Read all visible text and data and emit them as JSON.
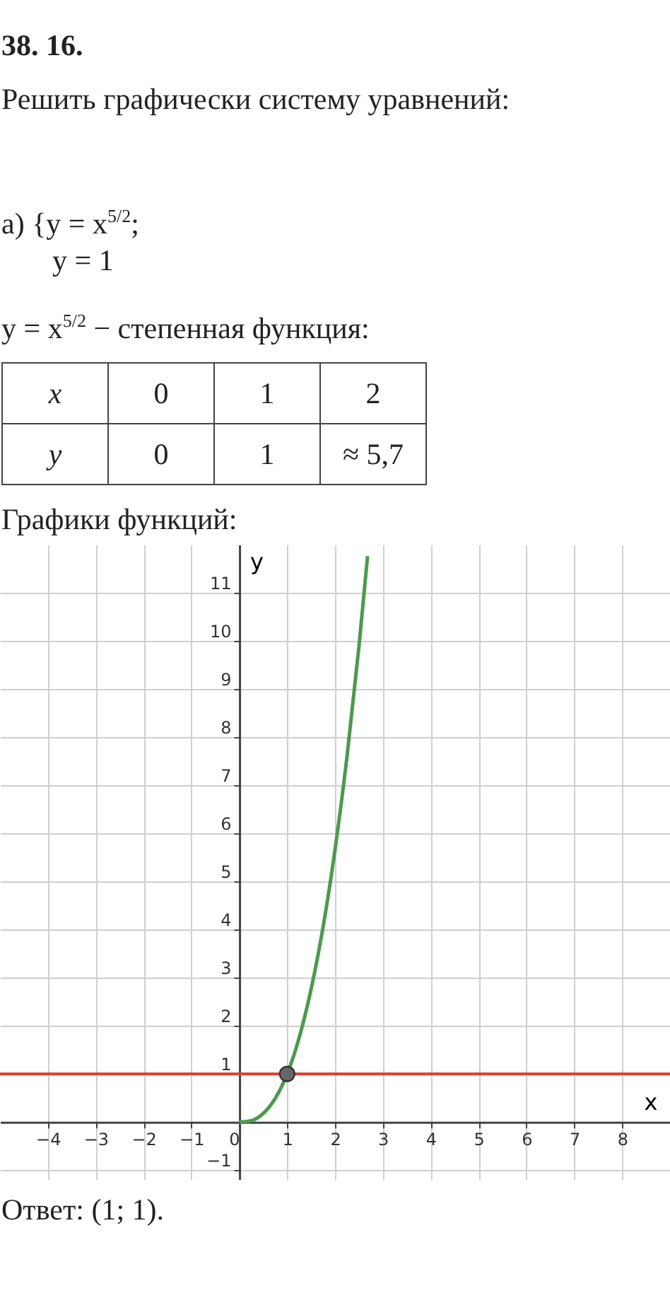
{
  "chart_data": {
    "type": "line",
    "title": "38. 16.",
    "annotations": [
      "Решить графически систему уравнений:",
      "а) {y = x$^{5/2}$;",
      "y = 1",
      "y = x$^{5/2}$ − степенная функция:",
      "x",
      "0",
      "1",
      "2",
      "y",
      "0",
      "1",
      "≈ 5,7",
      "Графики функций:",
      "Ответ: (1; 1)."
    ],
    "xlabel": "x",
    "ylabel": "y",
    "xlim": [
      -5,
      9
    ],
    "ylim": [
      -1.2,
      12
    ],
    "xticks": [
      -4,
      -3,
      -2,
      -1,
      0,
      1,
      2,
      3,
      4,
      5,
      6,
      7,
      8
    ],
    "yticks": [
      -1,
      1,
      2,
      3,
      4,
      5,
      6,
      7,
      8,
      9,
      10,
      11
    ],
    "grid": true,
    "series": [
      {
        "type": "line",
        "color": "#4c9a4c",
        "x": [
          0,
          0.25,
          0.5,
          0.75,
          1,
          1.25,
          1.5,
          1.75,
          2,
          2.25,
          2.5,
          2.68
        ],
        "values": [
          0,
          0.03,
          0.18,
          0.49,
          1,
          1.75,
          2.76,
          4.05,
          5.66,
          7.59,
          9.88,
          11.76
        ]
      },
      {
        "type": "scatter",
        "color": "#666666",
        "marker": "circle",
        "x": [
          1
        ],
        "values": [
          1
        ]
      }
    ],
    "ref_lines": [
      {
        "axis": "y",
        "value": 1,
        "color": "#e03c31"
      }
    ]
  }
}
